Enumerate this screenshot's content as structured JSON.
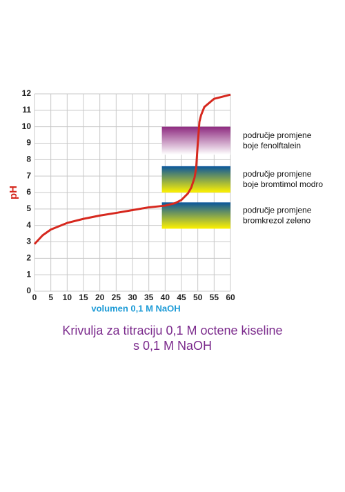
{
  "chart_data": {
    "type": "line",
    "title": [
      "Krivulja za titraciju 0,1 M octene kiseline",
      "s 0,1 M NaOH"
    ],
    "x_label": "volumen 0,1 M NaOH",
    "y_label": "pH",
    "xlim": [
      0,
      60
    ],
    "ylim": [
      0,
      12
    ],
    "xticks": [
      0,
      5,
      10,
      15,
      20,
      25,
      30,
      35,
      40,
      45,
      50,
      55,
      60
    ],
    "yticks": [
      0,
      1,
      2,
      3,
      4,
      5,
      6,
      7,
      8,
      9,
      10,
      11,
      12
    ],
    "grid": true,
    "series": [
      {
        "color": "#d6281e",
        "x": [
          0,
          2.5,
          5,
          10,
          15,
          20,
          25,
          30,
          35,
          40,
          43,
          45,
          47,
          48,
          49,
          49.5,
          50,
          50.5,
          51,
          52,
          55,
          60
        ],
        "values": [
          2.87,
          3.4,
          3.75,
          4.15,
          4.4,
          4.6,
          4.76,
          4.93,
          5.1,
          5.2,
          5.35,
          5.55,
          5.95,
          6.3,
          6.9,
          7.5,
          9.0,
          10.3,
          10.7,
          11.2,
          11.7,
          11.95
        ]
      }
    ],
    "indicators": [
      {
        "lines": [
          "područje promjene",
          "boje fenolftalein"
        ],
        "range": [
          8.3,
          10
        ],
        "x": [
          39,
          60
        ],
        "colors": [
          "#8e2a80",
          "#ffffff"
        ]
      },
      {
        "lines": [
          "područje promjene",
          "boje bromtimol modro"
        ],
        "range": [
          6.0,
          7.6
        ],
        "x": [
          39,
          60
        ],
        "colors": [
          "#0a569c",
          "#fff200"
        ]
      },
      {
        "lines": [
          "područje promjene",
          "bromkrezol zeleno"
        ],
        "range": [
          3.8,
          5.4
        ],
        "x": [
          39,
          60
        ],
        "colors": [
          "#0a569c",
          "#fff200"
        ]
      }
    ]
  }
}
